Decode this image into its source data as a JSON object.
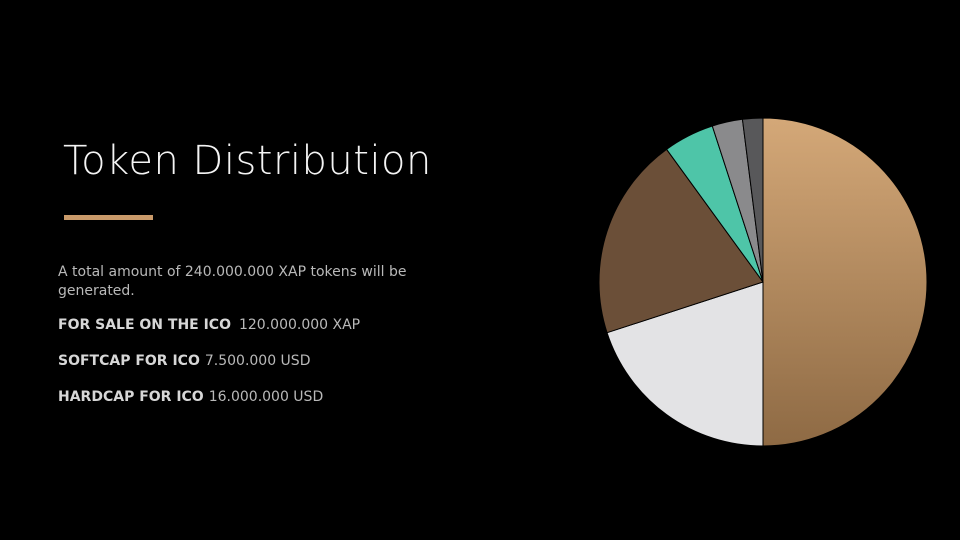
{
  "slide": {
    "title": "Token Distribution",
    "accent_color": "#c99a6a",
    "intro": "A total amount of 240.000.000 XAP tokens will be generated.",
    "facts": [
      {
        "label": "FOR SALE ON THE ICO",
        "value": "120.000.000 XAP"
      },
      {
        "label": "SOFTCAP FOR ICO",
        "value": "7.500.000 USD"
      },
      {
        "label": "HARDCAP FOR ICO",
        "value": "16.000.000 USD"
      }
    ]
  },
  "chart_data": {
    "type": "pie",
    "start": "12 o'clock",
    "direction": "clockwise",
    "slices": [
      {
        "value": 50,
        "color": "#b8875a"
      },
      {
        "value": 20,
        "color": "#e3e3e5"
      },
      {
        "value": 20,
        "color": "#6b4f38"
      },
      {
        "value": 5,
        "color": "#4ec5a8"
      },
      {
        "value": 3,
        "color": "#8a8a8c"
      },
      {
        "value": 2,
        "color": "#58585a"
      }
    ]
  }
}
